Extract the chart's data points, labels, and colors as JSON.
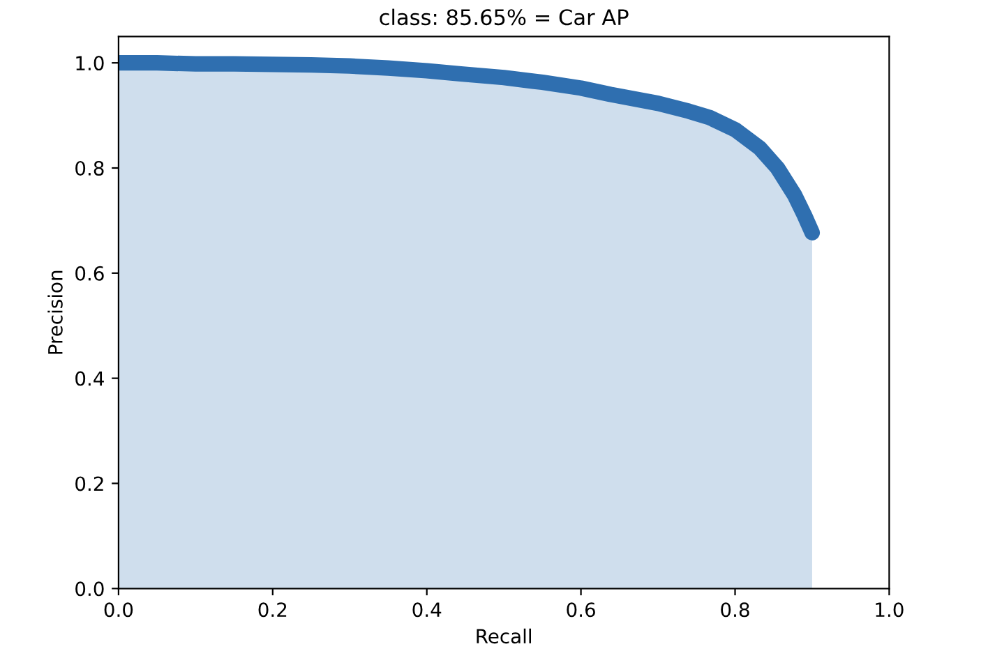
{
  "chart_data": {
    "type": "area",
    "title": "class: 85.65% = Car AP",
    "xlabel": "Recall",
    "ylabel": "Precision",
    "series": [
      {
        "color": "#2f6fb0",
        "x": [
          0,
          0.05,
          0.1,
          0.15,
          0.2,
          0.25,
          0.3,
          0.35,
          0.4,
          0.444,
          0.5,
          0.55,
          0.6,
          0.638,
          0.7,
          0.74,
          0.767,
          0.8,
          0.832,
          0.855,
          0.877,
          0.89,
          0.9
        ],
        "values": [
          1.0,
          1.0,
          0.998,
          0.998,
          0.997,
          0.996,
          0.994,
          0.99,
          0.985,
          0.979,
          0.972,
          0.963,
          0.952,
          0.94,
          0.923,
          0.908,
          0.896,
          0.873,
          0.838,
          0.8,
          0.749,
          0.71,
          0.677
        ]
      }
    ],
    "xlim": [
      0,
      1
    ],
    "ylim": [
      0,
      1.05
    ],
    "xticks": [
      {
        "value": 0,
        "label": "0.0"
      },
      0.2,
      0.4,
      0.6,
      0.8,
      {
        "value": 1,
        "label": "1.0"
      }
    ],
    "yticks": [
      {
        "value": 0,
        "label": "0.0"
      },
      0.2,
      0.4,
      0.6,
      0.8,
      {
        "value": 1,
        "label": "1.0"
      }
    ],
    "grid": false,
    "legend": false
  }
}
